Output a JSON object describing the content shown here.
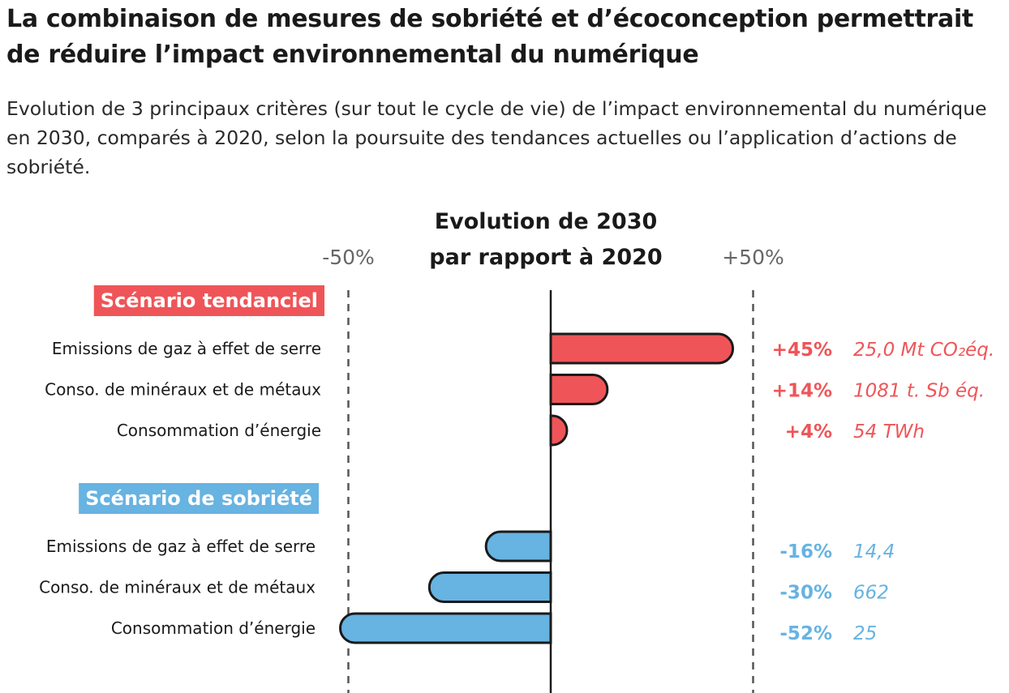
{
  "title": "La combinaison de mesures de sobriété et d’écoconception permettrait de réduire l’impact environnemental du numérique",
  "subtitle": "Evolution de 3 principaux critères (sur tout le cycle de vie) de l’impact environnemental du numérique en 2030, comparés à 2020, selon la poursuite des tendances actuelles ou l’application d’actions de sobriété.",
  "chart_data": {
    "type": "bar",
    "orientation": "horizontal",
    "axis_title_line1": "Evolution de 2030",
    "axis_title_line2": "par rapport à 2020",
    "xlim": [
      -50,
      50
    ],
    "ticks": [
      "-50%",
      "+50%"
    ],
    "tick_values": [
      -50,
      50
    ],
    "grid": "dashed reference lines at -50% and +50%",
    "groups": [
      {
        "name": "Scénario tendanciel",
        "color": "#ef5558",
        "categories": [
          "Emissions de gaz à effet de serre",
          "Conso. de minéraux et de métaux",
          "Consommation d’énergie"
        ],
        "values": [
          45,
          14,
          4
        ],
        "value_labels": [
          "+45%",
          "+14%",
          "+4%"
        ],
        "absolute_labels": [
          "25,0 Mt CO₂éq.",
          "1081 t. Sb éq.",
          "54 TWh"
        ]
      },
      {
        "name": "Scénario de sobriété",
        "color": "#67b3e2",
        "categories": [
          "Emissions de gaz à effet de serre",
          "Conso. de minéraux et de métaux",
          "Consommation d’énergie"
        ],
        "values": [
          -16,
          -30,
          -52
        ],
        "value_labels": [
          "-16%",
          "-30%",
          "-52%"
        ],
        "absolute_labels": [
          "14,4",
          "662",
          "25"
        ]
      }
    ]
  }
}
